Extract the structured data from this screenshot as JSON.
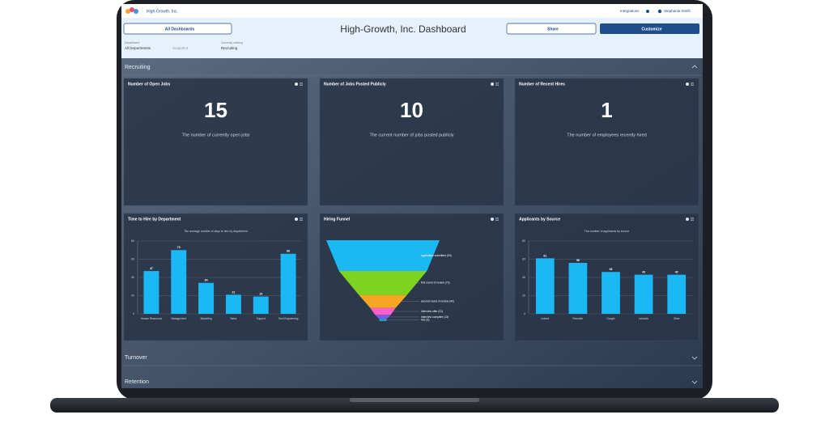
{
  "nav": {
    "company": "High-Growth, Inc.",
    "integrations": "Integrations",
    "user": "Stephanie Smith"
  },
  "header": {
    "title": "High-Growth, Inc. Dashboard",
    "all_dashboards": "All Dashboards",
    "share": "Share",
    "customize": "Customize"
  },
  "filters": {
    "department_label": "Department",
    "department": "All Departments",
    "snapshot": "Snapshot",
    "viewing_label": "Currently viewing",
    "viewing": "Recruiting"
  },
  "sections": [
    "Recruiting",
    "Turnover",
    "Retention"
  ],
  "kpis": [
    {
      "title": "Number of Open Jobs",
      "value": 15,
      "caption": "The number of currently open jobs"
    },
    {
      "title": "Number of Jobs Posted Publicly",
      "value": 10,
      "caption": "The current number of jobs posted publicly"
    },
    {
      "title": "Number of Recent Hires",
      "value": 1,
      "caption": "The number of employees recently hired"
    }
  ],
  "chart_data": [
    {
      "type": "bar",
      "title": "Time to Hire by Department",
      "subtitle": "The average number of days to hire by department",
      "categories": [
        "Human Resources",
        "Management",
        "Marketing",
        "Sales",
        "Support",
        "Tech Engineering"
      ],
      "values": [
        47,
        70,
        34,
        21,
        19,
        66
      ],
      "color": "#1ab8f5",
      "ylim": [
        0,
        80
      ],
      "yticks": [
        0,
        20,
        40,
        60,
        80
      ],
      "grid": true
    },
    {
      "type": "funnel",
      "title": "Hiring Funnel",
      "labels": [
        "application submitted (94)",
        "first round of review (73)",
        "second round of review (40)",
        "interview offer (21)",
        "interview complete (13)",
        "hire (6)"
      ],
      "values": [
        94,
        73,
        40,
        21,
        13,
        6
      ],
      "colors": [
        "#1ab8f5",
        "#7ed321",
        "#f5a623",
        "#ff5fc8",
        "#7b5be6",
        "#17a2b8"
      ]
    },
    {
      "type": "bar",
      "title": "Applicants by Source",
      "subtitle": "The number of applicants by source",
      "categories": [
        "Indeed",
        "Recruiter",
        "Google",
        "LinkedIn",
        "Other"
      ],
      "values": [
        61,
        56,
        46,
        43,
        43
      ],
      "color": "#1ab8f5",
      "ylim": [
        0,
        80
      ],
      "yticks": [
        0,
        20,
        40,
        60,
        80
      ],
      "grid": true
    }
  ]
}
